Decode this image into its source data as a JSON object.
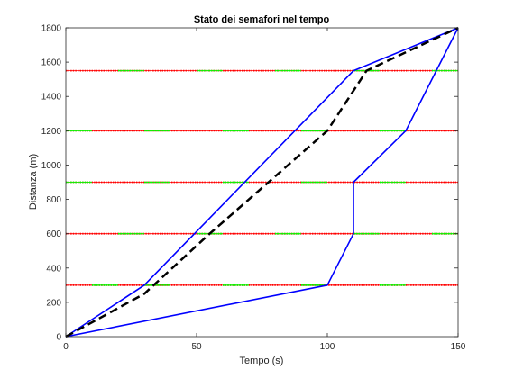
{
  "chart_data": {
    "type": "line",
    "title": "Stato dei semafori nel tempo",
    "xlabel": "Tempo (s)",
    "ylabel": "Distanza (m)",
    "xlim": [
      0,
      150
    ],
    "ylim": [
      0,
      1800
    ],
    "xticks": [
      "0",
      "50",
      "100",
      "150"
    ],
    "yticks": [
      "0",
      "200",
      "400",
      "600",
      "800",
      "1000",
      "1200",
      "1400",
      "1600",
      "1800"
    ],
    "grid": false,
    "traffic_lights": [
      {
        "distance": 300,
        "green": [
          [
            10,
            20
          ],
          [
            30,
            40
          ],
          [
            60,
            70
          ],
          [
            90,
            100
          ],
          [
            120,
            130
          ]
        ]
      },
      {
        "distance": 600,
        "green": [
          [
            20,
            30
          ],
          [
            50,
            60
          ],
          [
            80,
            90
          ],
          [
            110,
            120
          ],
          [
            140,
            150
          ]
        ]
      },
      {
        "distance": 900,
        "green": [
          [
            0,
            10
          ],
          [
            30,
            40
          ],
          [
            60,
            70
          ],
          [
            90,
            100
          ],
          [
            120,
            130
          ]
        ]
      },
      {
        "distance": 1200,
        "green": [
          [
            0,
            10
          ],
          [
            30,
            40
          ],
          [
            60,
            70
          ],
          [
            90,
            100
          ],
          [
            120,
            130
          ]
        ]
      },
      {
        "distance": 1550,
        "green": [
          [
            20,
            30
          ],
          [
            50,
            60
          ],
          [
            80,
            90
          ],
          [
            110,
            120
          ],
          [
            140,
            150
          ]
        ]
      }
    ],
    "series": [
      {
        "color": "#0000ff",
        "style": "solid",
        "x": [
          0,
          30,
          110,
          150
        ],
        "y": [
          0,
          300,
          1550,
          1800
        ]
      },
      {
        "color": "#0000ff",
        "style": "solid",
        "x": [
          0,
          100,
          110,
          110,
          130,
          150
        ],
        "y": [
          0,
          300,
          600,
          900,
          1200,
          1800
        ]
      },
      {
        "color": "#000000",
        "style": "dashed",
        "x": [
          0,
          30,
          55,
          100,
          115,
          150
        ],
        "y": [
          0,
          250,
          600,
          1200,
          1550,
          1800
        ]
      }
    ],
    "colors": {
      "red": "#ff0000",
      "green": "#00ff00",
      "axis": "#262626"
    }
  }
}
